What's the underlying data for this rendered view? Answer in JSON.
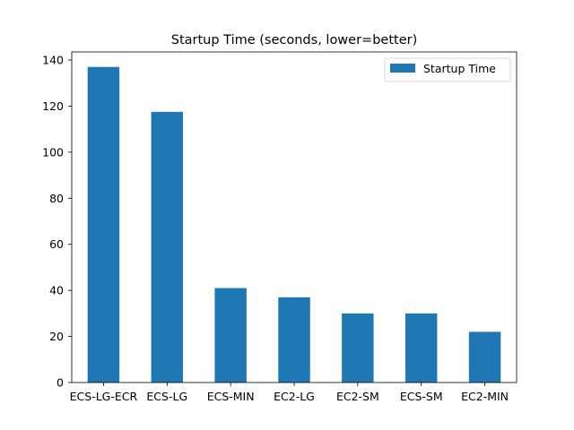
{
  "chart_data": {
    "type": "bar",
    "title": "Startup Time (seconds, lower=better)",
    "xlabel": "",
    "ylabel": "",
    "categories": [
      "ECS-LG-ECR",
      "ECS-LG",
      "ECS-MIN",
      "EC2-LG",
      "EC2-SM",
      "ECS-SM",
      "EC2-MIN"
    ],
    "series": [
      {
        "name": "Startup Time",
        "values": [
          137,
          117.5,
          41,
          37,
          30,
          30,
          22
        ],
        "color": "#1f77b4"
      }
    ],
    "ylim": [
      0,
      140
    ],
    "yticks": [
      0,
      20,
      40,
      60,
      80,
      100,
      120,
      140
    ],
    "grid": false,
    "legend": {
      "placement": "top-right",
      "entries": [
        "Startup Time"
      ]
    }
  }
}
